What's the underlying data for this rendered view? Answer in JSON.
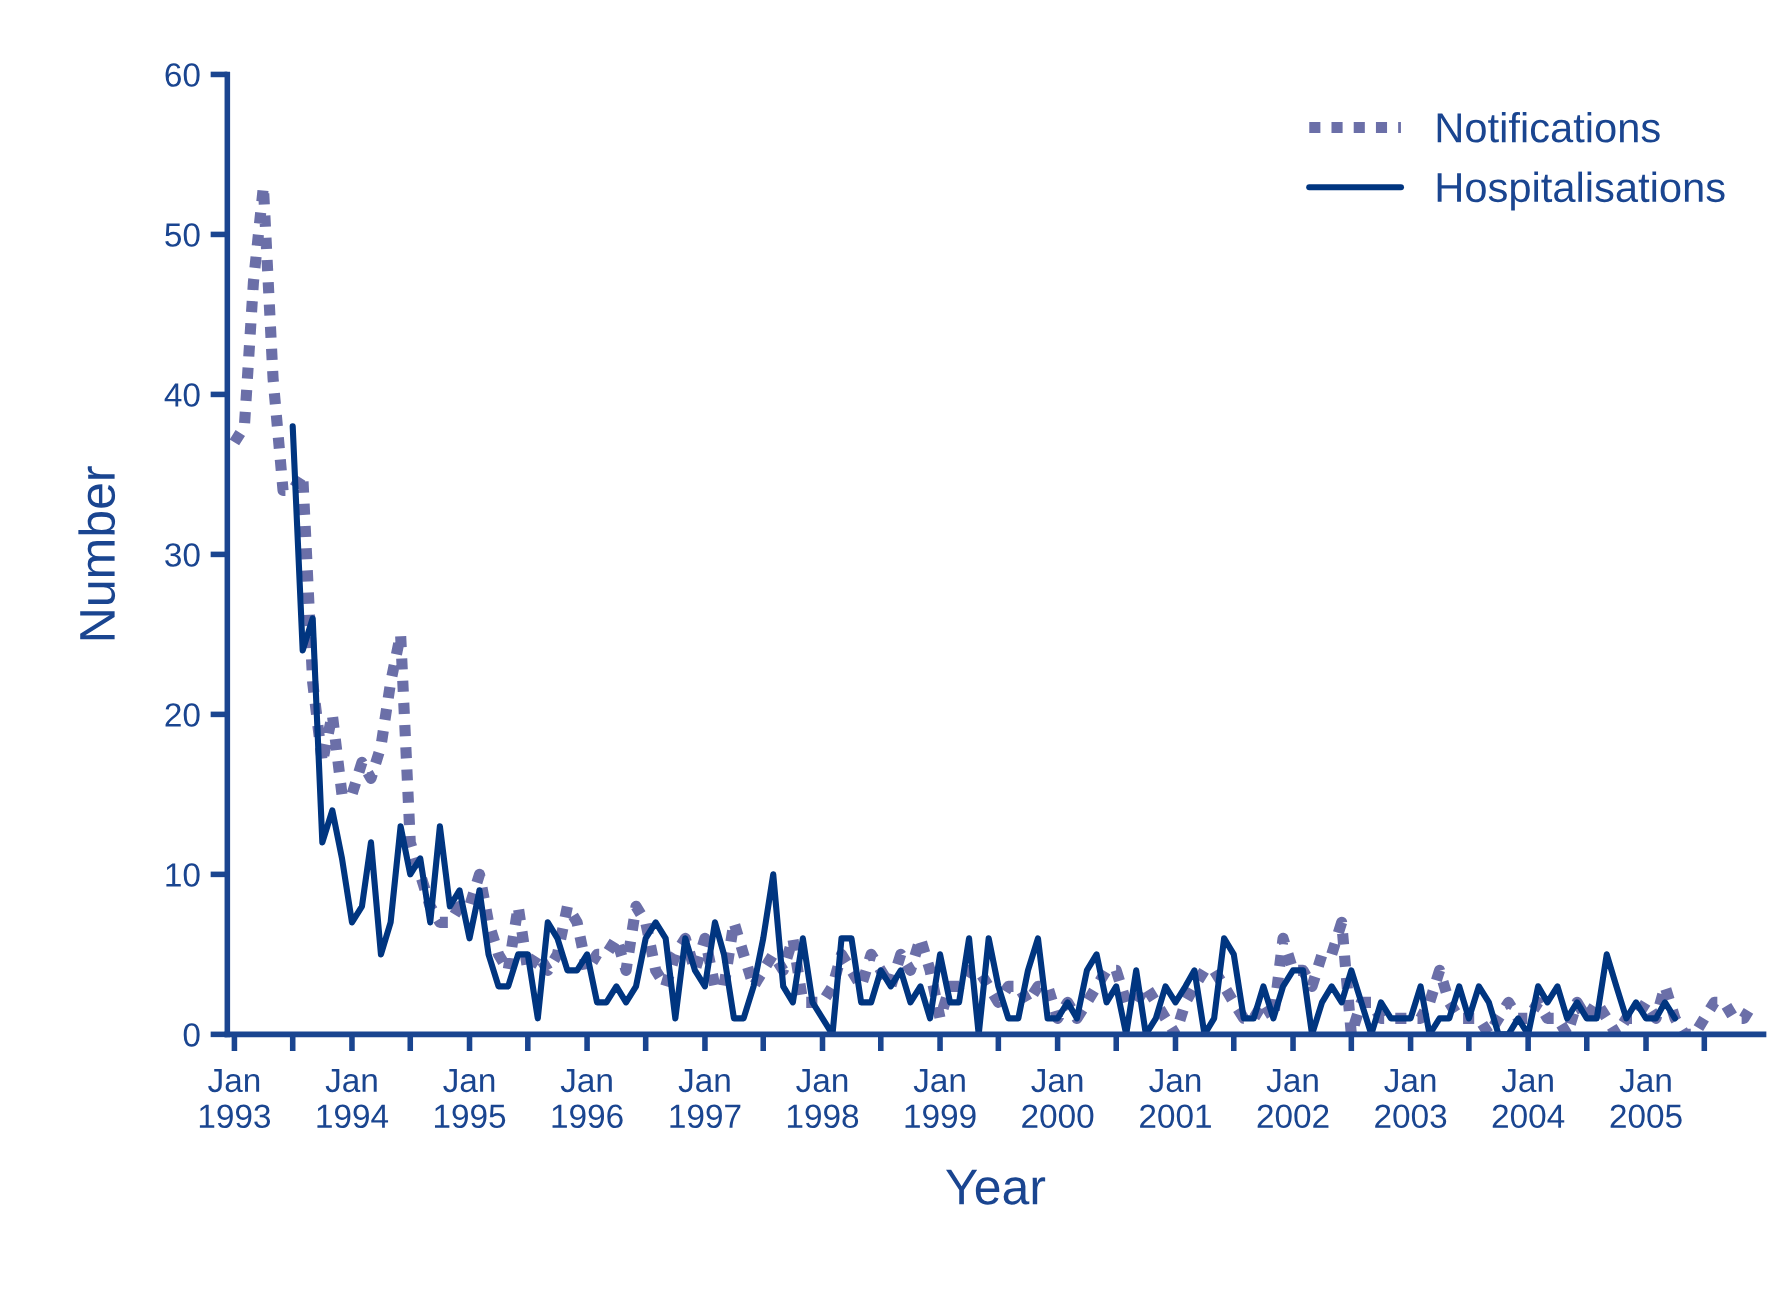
{
  "chart_data": {
    "type": "line",
    "xlabel": "Year",
    "ylabel": "Number",
    "legend": "top right",
    "grid": false,
    "xlim": [
      "1992-12-10",
      "2006-01-01"
    ],
    "xticks": [
      {
        "value": "1993-01",
        "label": "Jan\n1993"
      },
      {
        "value": "1993-07",
        "label": null
      },
      {
        "value": "1994-01",
        "label": "Jan\n1994"
      },
      {
        "value": "1994-07",
        "label": null
      },
      {
        "value": "1995-01",
        "label": "Jan\n1995"
      },
      {
        "value": "1995-07",
        "label": null
      },
      {
        "value": "1996-01",
        "label": "Jan\n1996"
      },
      {
        "value": "1996-07",
        "label": null
      },
      {
        "value": "1997-01",
        "label": "Jan\n1997"
      },
      {
        "value": "1997-07",
        "label": null
      },
      {
        "value": "1998-01",
        "label": "Jan\n1998"
      },
      {
        "value": "1998-07",
        "label": null
      },
      {
        "value": "1999-01",
        "label": "Jan\n1999"
      },
      {
        "value": "1999-07",
        "label": null
      },
      {
        "value": "2000-01",
        "label": "Jan\n2000"
      },
      {
        "value": "2000-07",
        "label": null
      },
      {
        "value": "2001-01",
        "label": "Jan\n2001"
      },
      {
        "value": "2001-07",
        "label": null
      },
      {
        "value": "2002-01",
        "label": "Jan\n2002"
      },
      {
        "value": "2002-07",
        "label": null
      },
      {
        "value": "2003-01",
        "label": "Jan\n2003"
      },
      {
        "value": "2003-07",
        "label": null
      },
      {
        "value": "2004-01",
        "label": "Jan\n2004"
      },
      {
        "value": "2004-07",
        "label": null
      },
      {
        "value": "2005-01",
        "label": "Jan\n2005"
      },
      {
        "value": "2005-07",
        "label": null
      }
    ],
    "ylim": [
      0,
      60
    ],
    "yticks": [
      0,
      10,
      20,
      30,
      40,
      50,
      60
    ],
    "series": [
      {
        "name": "Notifications",
        "color": "#6b6fa8",
        "line_style": "dotted",
        "x": [
          "1993-01",
          "1993-02",
          "1993-03",
          "1993-04",
          "1993-05",
          "1993-06",
          "1993-07",
          "1993-08",
          "1993-09",
          "1993-10",
          "1993-11",
          "1993-12",
          "1994-01",
          "1994-02",
          "1994-03",
          "1994-04",
          "1994-05",
          "1994-06",
          "1994-07",
          "1994-08",
          "1994-09",
          "1994-10",
          "1994-11",
          "1994-12",
          "1995-01",
          "1995-02",
          "1995-03",
          "1995-04",
          "1995-05",
          "1995-06",
          "1995-07",
          "1995-08",
          "1995-09",
          "1995-10",
          "1995-11",
          "1995-12",
          "1996-01",
          "1996-02",
          "1996-03",
          "1996-04",
          "1996-05",
          "1996-06",
          "1996-07",
          "1996-08",
          "1996-09",
          "1996-10",
          "1996-11",
          "1996-12",
          "1997-01",
          "1997-02",
          "1997-03",
          "1997-04",
          "1997-05",
          "1997-06",
          "1997-07",
          "1997-08",
          "1997-09",
          "1997-10",
          "1997-11",
          "1997-12",
          "1998-01",
          "1998-02",
          "1998-03",
          "1998-04",
          "1998-05",
          "1998-06",
          "1998-07",
          "1998-08",
          "1998-09",
          "1998-10",
          "1998-11",
          "1998-12",
          "1999-01",
          "1999-02",
          "1999-03",
          "1999-04",
          "1999-05",
          "1999-06",
          "1999-07",
          "1999-08",
          "1999-09",
          "1999-10",
          "1999-11",
          "1999-12",
          "2000-01",
          "2000-02",
          "2000-03",
          "2000-04",
          "2000-05",
          "2000-06",
          "2000-07",
          "2000-08",
          "2000-09",
          "2000-10",
          "2000-11",
          "2000-12",
          "2001-01",
          "2001-02",
          "2001-03",
          "2001-04",
          "2001-05",
          "2001-06",
          "2001-07",
          "2001-08",
          "2001-09",
          "2001-10",
          "2001-11",
          "2001-12",
          "2002-01",
          "2002-02",
          "2002-03",
          "2002-04",
          "2002-05",
          "2002-06",
          "2002-07",
          "2002-08",
          "2002-09",
          "2002-10",
          "2002-11",
          "2002-12",
          "2003-01",
          "2003-02",
          "2003-03",
          "2003-04",
          "2003-05",
          "2003-06",
          "2003-07",
          "2003-08",
          "2003-09",
          "2003-10",
          "2003-11",
          "2003-12",
          "2004-01",
          "2004-02",
          "2004-03",
          "2004-04",
          "2004-05",
          "2004-06",
          "2004-07",
          "2004-08",
          "2004-09",
          "2004-10",
          "2004-11",
          "2004-12",
          "2005-01",
          "2005-02",
          "2005-03",
          "2005-04",
          "2005-05",
          "2005-06",
          "2005-07",
          "2005-08",
          "2005-09",
          "2005-10",
          "2005-11",
          "2005-12"
        ],
        "values": [
          37,
          38,
          47,
          53,
          41,
          34,
          34,
          35,
          22,
          17,
          20,
          15,
          15,
          17,
          16,
          18,
          22,
          25,
          12,
          10,
          8,
          7,
          7,
          8,
          8,
          10,
          7,
          5,
          4,
          8,
          4,
          5,
          4,
          5,
          8,
          7,
          4,
          5,
          5,
          6,
          4,
          8,
          7,
          4,
          3,
          5,
          6,
          4,
          6,
          3,
          3,
          7,
          5,
          3,
          4,
          5,
          4,
          6,
          2,
          2,
          2,
          3,
          5,
          4,
          3,
          5,
          4,
          3,
          5,
          4,
          6,
          4,
          1,
          3,
          3,
          4,
          4,
          3,
          2,
          3,
          3,
          2,
          3,
          3,
          1,
          2,
          1,
          2,
          3,
          4,
          4,
          2,
          2,
          3,
          2,
          1,
          0,
          2,
          3,
          4,
          4,
          3,
          2,
          1,
          1,
          2,
          1,
          6,
          4,
          4,
          3,
          5,
          5,
          7,
          0,
          2,
          2,
          1,
          1,
          1,
          1,
          1,
          2,
          4,
          2,
          1,
          1,
          1,
          0,
          1,
          2,
          1,
          1,
          2,
          1,
          1,
          0,
          2,
          1,
          2,
          1,
          0,
          1,
          1,
          2,
          1,
          3,
          1,
          0,
          0,
          1,
          2,
          2,
          1,
          1,
          2
        ]
      },
      {
        "name": "Hospitalisations",
        "color": "#003580",
        "line_style": "solid",
        "x": [
          "1993-07",
          "1993-08",
          "1993-09",
          "1993-10",
          "1993-11",
          "1993-12",
          "1994-01",
          "1994-02",
          "1994-03",
          "1994-04",
          "1994-05",
          "1994-06",
          "1994-07",
          "1994-08",
          "1994-09",
          "1994-10",
          "1994-11",
          "1994-12",
          "1995-01",
          "1995-02",
          "1995-03",
          "1995-04",
          "1995-05",
          "1995-06",
          "1995-07",
          "1995-08",
          "1995-09",
          "1995-10",
          "1995-11",
          "1995-12",
          "1996-01",
          "1996-02",
          "1996-03",
          "1996-04",
          "1996-05",
          "1996-06",
          "1996-07",
          "1996-08",
          "1996-09",
          "1996-10",
          "1996-11",
          "1996-12",
          "1997-01",
          "1997-02",
          "1997-03",
          "1997-04",
          "1997-05",
          "1997-06",
          "1997-07",
          "1997-08",
          "1997-09",
          "1997-10",
          "1997-11",
          "1997-12",
          "1998-01",
          "1998-02",
          "1998-03",
          "1998-04",
          "1998-05",
          "1998-06",
          "1998-07",
          "1998-08",
          "1998-09",
          "1998-10",
          "1998-11",
          "1998-12",
          "1999-01",
          "1999-02",
          "1999-03",
          "1999-04",
          "1999-05",
          "1999-06",
          "1999-07",
          "1999-08",
          "1999-09",
          "1999-10",
          "1999-11",
          "1999-12",
          "2000-01",
          "2000-02",
          "2000-03",
          "2000-04",
          "2000-05",
          "2000-06",
          "2000-07",
          "2000-08",
          "2000-09",
          "2000-10",
          "2000-11",
          "2000-12",
          "2001-01",
          "2001-02",
          "2001-03",
          "2001-04",
          "2001-05",
          "2001-06",
          "2001-07",
          "2001-08",
          "2001-09",
          "2001-10",
          "2001-11",
          "2001-12",
          "2002-01",
          "2002-02",
          "2002-03",
          "2002-04",
          "2002-05",
          "2002-06",
          "2002-07",
          "2002-08",
          "2002-09",
          "2002-10",
          "2002-11",
          "2002-12",
          "2003-01",
          "2003-02",
          "2003-03",
          "2003-04",
          "2003-05",
          "2003-06",
          "2003-07",
          "2003-08",
          "2003-09",
          "2003-10",
          "2003-11",
          "2003-12",
          "2004-01",
          "2004-02",
          "2004-03",
          "2004-04",
          "2004-05",
          "2004-06",
          "2004-07",
          "2004-08",
          "2004-09",
          "2004-10",
          "2004-11",
          "2004-12",
          "2005-01",
          "2005-02",
          "2005-03",
          "2005-04"
        ],
        "values": [
          38,
          24,
          26,
          12,
          14,
          11,
          7,
          8,
          12,
          5,
          7,
          13,
          10,
          11,
          7,
          13,
          8,
          9,
          6,
          9,
          5,
          3,
          3,
          5,
          5,
          1,
          7,
          6,
          4,
          4,
          5,
          2,
          2,
          3,
          2,
          3,
          6,
          7,
          6,
          1,
          6,
          4,
          3,
          7,
          5,
          1,
          1,
          3,
          6,
          10,
          3,
          2,
          6,
          2,
          1,
          0,
          6,
          6,
          2,
          2,
          4,
          3,
          4,
          2,
          3,
          1,
          5,
          2,
          2,
          6,
          0,
          6,
          3,
          1,
          1,
          4,
          6,
          1,
          1,
          2,
          1,
          4,
          5,
          2,
          3,
          0,
          4,
          0,
          1,
          3,
          2,
          3,
          4,
          0,
          1,
          6,
          5,
          1,
          1,
          3,
          1,
          3,
          4,
          4,
          0,
          2,
          3,
          2,
          4,
          2,
          0,
          2,
          1,
          1,
          1,
          3,
          0,
          1,
          1,
          3,
          1,
          3,
          2,
          0,
          0,
          1,
          0,
          3,
          2,
          3,
          1,
          2,
          1,
          1,
          5,
          3,
          1,
          2,
          1,
          1,
          2,
          1
        ]
      }
    ]
  }
}
